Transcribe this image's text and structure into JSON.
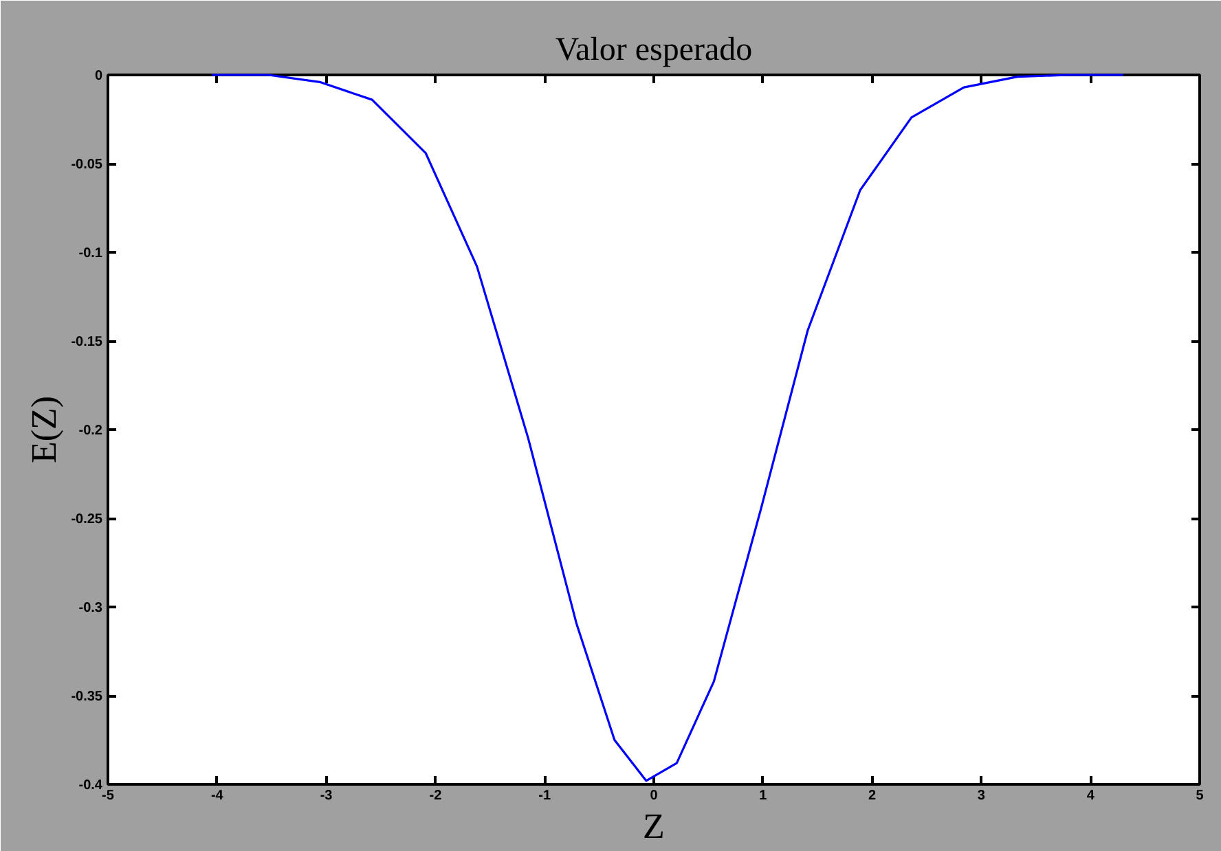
{
  "chart_data": {
    "type": "line",
    "title": "Valor esperado",
    "xlabel": "Z",
    "ylabel": "E(Z)",
    "x": [
      -4.05,
      -3.53,
      -3.06,
      -2.58,
      -2.09,
      -1.62,
      -1.15,
      -0.71,
      -0.36,
      -0.07,
      0.21,
      0.55,
      0.98,
      1.41,
      1.89,
      2.36,
      2.84,
      3.33,
      3.8,
      4.3
    ],
    "series": [
      {
        "color": "#0000ff",
        "values": [
          0,
          0,
          -0.004,
          -0.014,
          -0.044,
          -0.108,
          -0.205,
          -0.309,
          -0.375,
          -0.398,
          -0.388,
          -0.342,
          -0.245,
          -0.144,
          -0.065,
          -0.024,
          -0.007,
          -0.001,
          0,
          0
        ]
      }
    ],
    "xlim": [
      -5,
      5
    ],
    "ylim": [
      -0.4,
      0
    ],
    "xticks": [
      -5,
      -4,
      -3,
      -2,
      -1,
      0,
      1,
      2,
      3,
      4,
      5
    ],
    "yticks": [
      0,
      -0.05,
      -0.1,
      -0.15,
      -0.2,
      -0.25,
      -0.3,
      -0.35,
      -0.4
    ],
    "grid": false,
    "line_style": "solid"
  }
}
